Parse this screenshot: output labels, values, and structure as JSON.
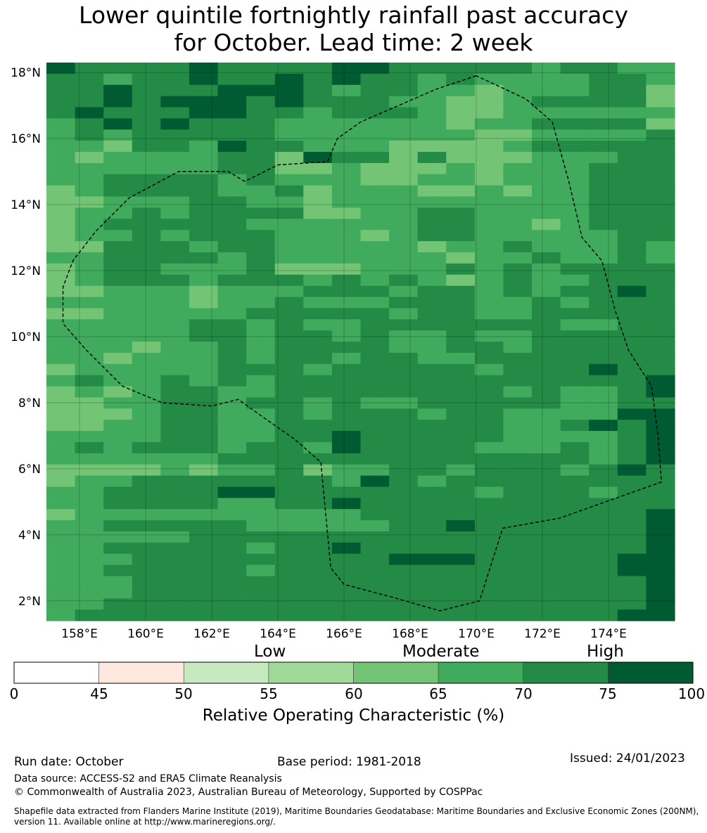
{
  "title": {
    "line1": "Lower quintile fortnightly rainfall past accuracy",
    "line2": "for October. Lead time: 2 week"
  },
  "map": {
    "lat_labels": [
      "18°N",
      "16°N",
      "14°N",
      "12°N",
      "10°N",
      "8°N",
      "6°N",
      "4°N",
      "2°N"
    ],
    "lon_labels": [
      "158°E",
      "160°E",
      "162°E",
      "164°E",
      "166°E",
      "168°E",
      "170°E",
      "172°E",
      "174°E"
    ],
    "lat_range": [
      1.4,
      18.3
    ],
    "lon_range": [
      157.0,
      176.0
    ],
    "palette": [
      "#ffffff",
      "#fee8df",
      "#c7e9c0",
      "#a1d99b",
      "#74c476",
      "#41ab5d",
      "#238b45",
      "#005a32"
    ],
    "grid_rows": [
      "7666676666776666656655",
      "6656676676766565555665",
      "6676667776566554555664",
      "6676777676665544566664",
      "6766677665666544555555",
      "5676766655555545566664",
      "5656666655555554455556",
      "5546657665554444566666",
      "5455556647664644455566",
      "5555556644544454555666",
      "5566665655544554555666",
      "4566665564555445455666",
      "4455566554555555555666",
      "4556566664455665555666",
      "4566666555555665545666",
      "4556566655545665555566",
      "4466656655555455655565",
      "5566665655555545565565",
      "4566555644455565656666",
      "4566656665656545655666",
      "4455545556665665656676",
      "5555545565556665565666",
      "4455555666665665566666",
      "5555566565566666665566",
      "5555566566565565566666",
      "5554556566665566566666",
      "5545556566566556666666",
      "4555556665666665666766",
      "5655656566666666666667",
      "4545665566666666565567",
      "4455665665655666665566",
      "4445665565666566555577",
      "4455665566666666556767",
      "5555665566766666555567",
      "5656665665766665556567",
      "5555556666666666666567",
      "4444545564556656665676",
      "4556666666576566666666",
      "5566667766666665666566",
      "5566665566766666666666",
      "4555555555566666666667",
      "5566666555556676666667",
      "5555566666666666666667",
      "5566666566766666666667",
      "5556666666667776666677",
      "5566666566666666666677",
      "5556666666666666666667",
      "5556666666666666666667",
      "5566666666666666666667",
      "5666666666666666666677"
    ],
    "eez_boundary": [
      [
        170.0,
        17.9
      ],
      [
        168.8,
        17.5
      ],
      [
        166.5,
        16.5
      ],
      [
        165.8,
        16.0
      ],
      [
        165.5,
        15.3
      ],
      [
        164.0,
        15.2
      ],
      [
        163.0,
        14.7
      ],
      [
        162.5,
        15.0
      ],
      [
        161.0,
        15.0
      ],
      [
        159.5,
        14.2
      ],
      [
        158.5,
        13.2
      ],
      [
        157.8,
        12.3
      ],
      [
        157.5,
        11.5
      ],
      [
        157.5,
        10.4
      ],
      [
        158.2,
        9.6
      ],
      [
        159.3,
        8.5
      ],
      [
        160.5,
        8.0
      ],
      [
        162.0,
        7.9
      ],
      [
        162.8,
        8.1
      ],
      [
        163.5,
        7.6
      ],
      [
        164.5,
        6.9
      ],
      [
        165.3,
        6.2
      ],
      [
        165.6,
        3.0
      ],
      [
        166.0,
        2.5
      ],
      [
        167.5,
        2.1
      ],
      [
        168.9,
        1.7
      ],
      [
        170.1,
        2.0
      ],
      [
        170.8,
        4.2
      ],
      [
        172.5,
        4.5
      ],
      [
        175.6,
        5.6
      ],
      [
        175.5,
        7.0
      ],
      [
        175.3,
        8.5
      ],
      [
        174.6,
        9.6
      ],
      [
        174.2,
        10.8
      ],
      [
        173.8,
        12.3
      ],
      [
        173.2,
        13.0
      ],
      [
        172.8,
        14.7
      ],
      [
        172.3,
        16.5
      ],
      [
        171.5,
        17.2
      ],
      [
        170.0,
        17.9
      ]
    ]
  },
  "colorbar": {
    "category_labels": [
      "Low",
      "Moderate",
      "High"
    ],
    "ticks": [
      "0",
      "45",
      "50",
      "55",
      "60",
      "65",
      "70",
      "75",
      "100"
    ],
    "colors": [
      "#ffffff",
      "#fee8df",
      "#c7e9c0",
      "#a1d99b",
      "#74c476",
      "#41ab5d",
      "#238b45",
      "#005a32"
    ],
    "title": "Relative Operating Characteristic (%)"
  },
  "footer": {
    "run_date": "Run date: October",
    "base_period": "Base period: 1981-2018",
    "issued": "Issued: 24/01/2023",
    "data_source": "Data source: ACCESS-S2 and ERA5 Climate Reanalysis",
    "copyright": "© Commonwealth of Australia 2023, Australian Bureau of Meteorology, Supported by COSPPac",
    "shapefile_line1": "Shapefile data extracted from Flanders Marine Institute (2019), Maritime Boundaries Geodatabase: Maritime Boundaries and Exclusive Economic Zones (200NM),",
    "shapefile_line2": "version 11. Available online at http://www.marineregions.org/."
  }
}
